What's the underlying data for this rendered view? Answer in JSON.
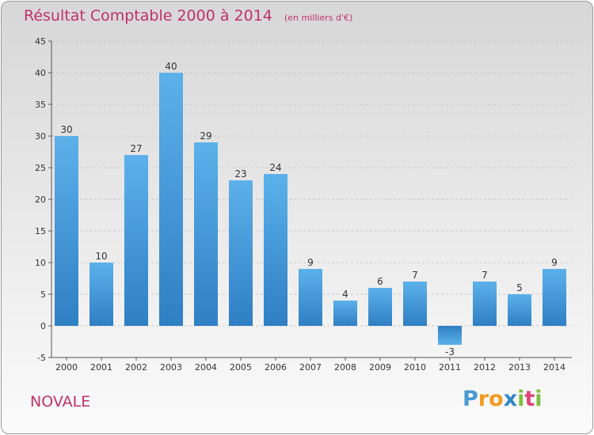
{
  "title": "Résultat Comptable 2000 à 2014",
  "unit_note": "(en milliers d'€)",
  "commune": "NOVALE",
  "logo": {
    "letters": [
      "P",
      "r",
      "o",
      "x",
      "i",
      "t",
      "i"
    ],
    "colors": [
      "#4a9ad2",
      "#f39a1e",
      "#f39a1e",
      "#2f86c9",
      "#7cbf3a",
      "#e0437a",
      "#7cbf3a"
    ]
  },
  "colors": {
    "bar": "#4a9ee0",
    "text": "#c0306a",
    "axis": "#444444"
  },
  "chart_data": {
    "type": "bar",
    "title": "Résultat Comptable 2000 à 2014",
    "ylabel": "en milliers d'€",
    "xlabel": "",
    "categories": [
      "2000",
      "2001",
      "2002",
      "2003",
      "2004",
      "2005",
      "2006",
      "2007",
      "2008",
      "2009",
      "2010",
      "2011",
      "2012",
      "2013",
      "2014"
    ],
    "values": [
      30,
      10,
      27,
      40,
      29,
      23,
      24,
      9,
      4,
      6,
      7,
      -3,
      7,
      5,
      9
    ],
    "ylim": [
      -5,
      45
    ],
    "yticks": [
      -5,
      0,
      5,
      10,
      15,
      20,
      25,
      30,
      35,
      40,
      45
    ],
    "grid": true,
    "data_labels": true
  }
}
